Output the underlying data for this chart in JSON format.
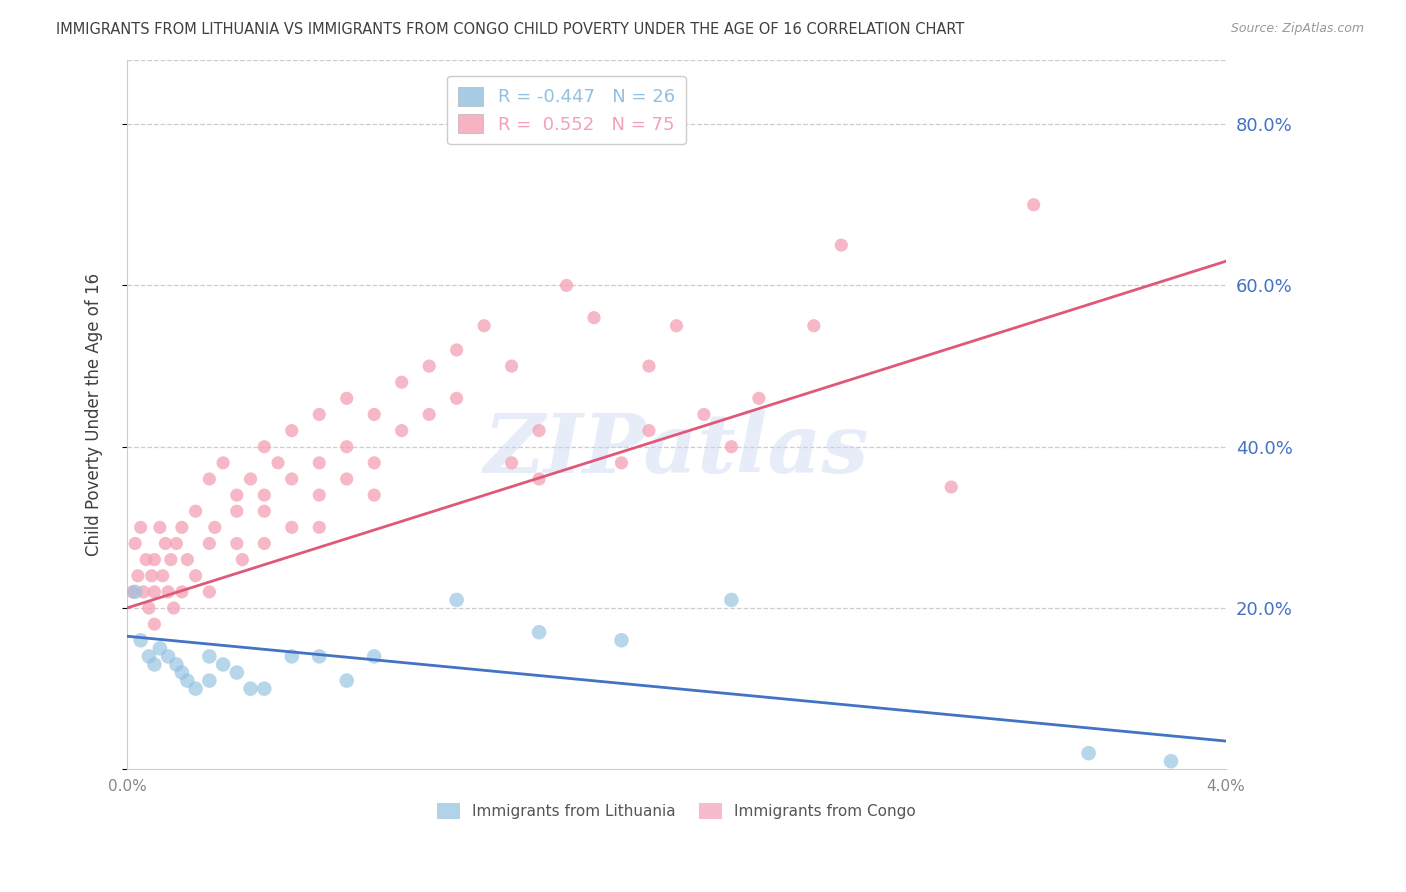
{
  "title": "IMMIGRANTS FROM LITHUANIA VS IMMIGRANTS FROM CONGO CHILD POVERTY UNDER THE AGE OF 16 CORRELATION CHART",
  "source": "Source: ZipAtlas.com",
  "ylabel": "Child Poverty Under the Age of 16",
  "xmin": 0.0,
  "xmax": 0.04,
  "ymin": 0.0,
  "ymax": 0.88,
  "yticks": [
    0.0,
    0.2,
    0.4,
    0.6,
    0.8
  ],
  "ytick_labels": [
    "",
    "20.0%",
    "40.0%",
    "60.0%",
    "80.0%"
  ],
  "legend_r1": "R = -0.447",
  "legend_n1": "N = 26",
  "legend_r2": "R =  0.552",
  "legend_n2": "N = 75",
  "legend_label1": "Immigrants from Lithuania",
  "legend_label2": "Immigrants from Congo",
  "blue_color": "#92c0e0",
  "pink_color": "#f4a0b5",
  "line_blue": "#4472c4",
  "line_pink": "#e05878",
  "watermark": "ZIPatlas",
  "background_color": "#ffffff",
  "grid_color": "#cccccc",
  "title_color": "#404040",
  "axis_label_color": "#404040",
  "right_axis_color": "#4472c4",
  "tick_color": "#888888",
  "lithuania_x": [
    0.0003,
    0.0005,
    0.0008,
    0.001,
    0.0012,
    0.0015,
    0.0018,
    0.002,
    0.0022,
    0.0025,
    0.003,
    0.003,
    0.0035,
    0.004,
    0.0045,
    0.005,
    0.006,
    0.007,
    0.008,
    0.009,
    0.012,
    0.015,
    0.018,
    0.022,
    0.035,
    0.038
  ],
  "lithuania_y": [
    0.22,
    0.16,
    0.14,
    0.13,
    0.15,
    0.14,
    0.13,
    0.12,
    0.11,
    0.1,
    0.14,
    0.11,
    0.13,
    0.12,
    0.1,
    0.1,
    0.14,
    0.14,
    0.11,
    0.14,
    0.21,
    0.17,
    0.16,
    0.21,
    0.02,
    0.01
  ],
  "congo_x": [
    0.0002,
    0.0003,
    0.0004,
    0.0005,
    0.0006,
    0.0007,
    0.0008,
    0.0009,
    0.001,
    0.001,
    0.001,
    0.0012,
    0.0013,
    0.0014,
    0.0015,
    0.0016,
    0.0017,
    0.0018,
    0.002,
    0.002,
    0.0022,
    0.0025,
    0.0025,
    0.003,
    0.003,
    0.003,
    0.0032,
    0.0035,
    0.004,
    0.004,
    0.004,
    0.0042,
    0.0045,
    0.005,
    0.005,
    0.005,
    0.005,
    0.0055,
    0.006,
    0.006,
    0.006,
    0.007,
    0.007,
    0.007,
    0.007,
    0.008,
    0.008,
    0.008,
    0.009,
    0.009,
    0.009,
    0.01,
    0.01,
    0.011,
    0.011,
    0.012,
    0.012,
    0.013,
    0.014,
    0.014,
    0.015,
    0.015,
    0.016,
    0.017,
    0.018,
    0.019,
    0.019,
    0.02,
    0.021,
    0.022,
    0.023,
    0.025,
    0.026,
    0.03,
    0.033
  ],
  "congo_y": [
    0.22,
    0.28,
    0.24,
    0.3,
    0.22,
    0.26,
    0.2,
    0.24,
    0.18,
    0.22,
    0.26,
    0.3,
    0.24,
    0.28,
    0.22,
    0.26,
    0.2,
    0.28,
    0.22,
    0.3,
    0.26,
    0.32,
    0.24,
    0.36,
    0.28,
    0.22,
    0.3,
    0.38,
    0.34,
    0.28,
    0.32,
    0.26,
    0.36,
    0.4,
    0.32,
    0.28,
    0.34,
    0.38,
    0.42,
    0.36,
    0.3,
    0.44,
    0.38,
    0.34,
    0.3,
    0.46,
    0.4,
    0.36,
    0.44,
    0.38,
    0.34,
    0.48,
    0.42,
    0.5,
    0.44,
    0.52,
    0.46,
    0.55,
    0.5,
    0.38,
    0.42,
    0.36,
    0.6,
    0.56,
    0.38,
    0.42,
    0.5,
    0.55,
    0.44,
    0.4,
    0.46,
    0.55,
    0.65,
    0.35,
    0.7
  ],
  "lith_line_x0": 0.0,
  "lith_line_x1": 0.04,
  "lith_line_y0": 0.165,
  "lith_line_y1": 0.035,
  "congo_line_x0": 0.0,
  "congo_line_x1": 0.04,
  "congo_line_y0": 0.2,
  "congo_line_y1": 0.63
}
